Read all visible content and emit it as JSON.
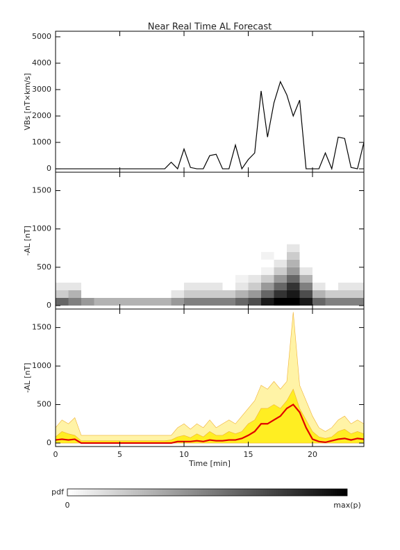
{
  "chart_data": [
    {
      "type": "line",
      "title": "Near Real Time AL Forecast",
      "ylabel": "VBs [nT×km/s]",
      "color": "#000000",
      "x": [
        0,
        0.5,
        1,
        1.5,
        2,
        2.5,
        3,
        3.5,
        4,
        4.5,
        5,
        5.5,
        6,
        6.5,
        7,
        7.5,
        8,
        8.5,
        9,
        9.5,
        10,
        10.5,
        11,
        11.5,
        12,
        12.5,
        13,
        13.5,
        14,
        14.5,
        15,
        15.5,
        16,
        16.5,
        17,
        17.5,
        18,
        18.5,
        19,
        19.5,
        20,
        20.5,
        21,
        21.5,
        22,
        22.5,
        23,
        23.5,
        24
      ],
      "values": [
        0,
        0,
        0,
        0,
        0,
        0,
        0,
        0,
        0,
        0,
        0,
        0,
        0,
        0,
        0,
        0,
        0,
        0,
        250,
        0,
        750,
        50,
        0,
        0,
        500,
        550,
        0,
        0,
        900,
        0,
        350,
        600,
        2950,
        1200,
        2500,
        3300,
        2800,
        2000,
        2600,
        0,
        0,
        0,
        600,
        0,
        1200,
        1150,
        50,
        0,
        1000
      ],
      "xlim": [
        0,
        24
      ],
      "xticks": [
        0,
        5,
        10,
        15,
        20
      ],
      "ylim": [
        -130,
        5210
      ],
      "yticks": [
        0,
        1000,
        2000,
        3000,
        4000,
        5000
      ]
    },
    {
      "type": "heatmap",
      "ylabel": "-AL [nT]",
      "xbins": [
        0,
        1,
        2,
        3,
        4,
        5,
        6,
        7,
        8,
        9,
        10,
        11,
        12,
        13,
        14,
        15,
        16,
        17,
        18,
        19,
        20,
        21,
        22,
        23,
        24
      ],
      "ybins": [
        0,
        100,
        200,
        300,
        400,
        500,
        600,
        700,
        800
      ],
      "z": [
        [
          0.6,
          0.5,
          0.4,
          0.3,
          0.3,
          0.3,
          0.3,
          0.3,
          0.3,
          0.4,
          0.5,
          0.5,
          0.5,
          0.5,
          0.6,
          0.7,
          0.9,
          1,
          1,
          0.9,
          0.6,
          0.5,
          0.5,
          0.5
        ],
        [
          0.2,
          0.3,
          0,
          0,
          0,
          0,
          0,
          0,
          0,
          0.1,
          0.2,
          0.2,
          0.2,
          0.2,
          0.3,
          0.4,
          0.6,
          0.8,
          0.9,
          0.7,
          0.3,
          0.2,
          0.2,
          0.2
        ],
        [
          0.1,
          0.1,
          0,
          0,
          0,
          0,
          0,
          0,
          0,
          0,
          0.1,
          0.1,
          0.1,
          0,
          0.1,
          0.2,
          0.4,
          0.6,
          0.8,
          0.5,
          0.1,
          0,
          0.1,
          0.1
        ],
        [
          0,
          0,
          0,
          0,
          0,
          0,
          0,
          0,
          0,
          0,
          0,
          0,
          0,
          0,
          0.05,
          0.1,
          0.2,
          0.4,
          0.6,
          0.3,
          0,
          0,
          0,
          0
        ],
        [
          0,
          0,
          0,
          0,
          0,
          0,
          0,
          0,
          0,
          0,
          0,
          0,
          0,
          0,
          0,
          0,
          0.05,
          0.2,
          0.4,
          0.1,
          0,
          0,
          0,
          0
        ],
        [
          0,
          0,
          0,
          0,
          0,
          0,
          0,
          0,
          0,
          0,
          0,
          0,
          0,
          0,
          0,
          0,
          0,
          0.1,
          0.3,
          0,
          0,
          0,
          0,
          0
        ],
        [
          0,
          0,
          0,
          0,
          0,
          0,
          0,
          0,
          0,
          0,
          0,
          0,
          0,
          0,
          0,
          0,
          0.05,
          0,
          0.2,
          0,
          0,
          0,
          0,
          0
        ],
        [
          0,
          0,
          0,
          0,
          0,
          0,
          0,
          0,
          0,
          0,
          0,
          0,
          0,
          0,
          0,
          0,
          0,
          0,
          0.1,
          0,
          0,
          0,
          0,
          0
        ]
      ],
      "xlim": [
        0,
        24
      ],
      "xticks": [
        0,
        5,
        10,
        15,
        20
      ],
      "ylim": [
        -45,
        1740
      ],
      "yticks": [
        0,
        500,
        1000,
        1500
      ],
      "colorbar": {
        "label": "pdf",
        "min_label": "0",
        "max_label": "max(p)"
      }
    },
    {
      "type": "area",
      "ylabel": "-AL [nT]",
      "xlabel": "Time [min]",
      "x": [
        0,
        0.5,
        1,
        1.5,
        2,
        2.5,
        3,
        3.5,
        4,
        4.5,
        5,
        5.5,
        6,
        6.5,
        7,
        7.5,
        8,
        8.5,
        9,
        9.5,
        10,
        10.5,
        11,
        11.5,
        12,
        12.5,
        13,
        13.5,
        14,
        14.5,
        15,
        15.5,
        16,
        16.5,
        17,
        17.5,
        18,
        18.5,
        19,
        19.5,
        20,
        20.5,
        21,
        21.5,
        22,
        22.5,
        23,
        23.5,
        24
      ],
      "series": [
        {
          "color": "#fff3a6",
          "values": [
            200,
            300,
            250,
            330,
            100,
            100,
            100,
            100,
            100,
            100,
            100,
            100,
            100,
            100,
            100,
            100,
            100,
            100,
            100,
            200,
            250,
            180,
            250,
            200,
            300,
            200,
            250,
            300,
            250,
            350,
            450,
            550,
            750,
            700,
            800,
            700,
            800,
            1700,
            750,
            550,
            350,
            200,
            150,
            200,
            300,
            350,
            250,
            300,
            250
          ]
        },
        {
          "color": "#ffee22",
          "values": [
            80,
            150,
            120,
            100,
            30,
            30,
            30,
            30,
            30,
            30,
            30,
            30,
            30,
            30,
            30,
            30,
            30,
            30,
            40,
            80,
            100,
            70,
            120,
            80,
            150,
            100,
            100,
            150,
            120,
            150,
            250,
            300,
            450,
            450,
            500,
            450,
            550,
            700,
            450,
            300,
            150,
            80,
            60,
            80,
            150,
            180,
            120,
            150,
            120
          ]
        },
        {
          "color": "#e00000",
          "values": [
            40,
            50,
            40,
            50,
            0,
            0,
            0,
            0,
            0,
            0,
            0,
            0,
            0,
            0,
            0,
            0,
            0,
            0,
            0,
            20,
            20,
            20,
            30,
            20,
            40,
            30,
            30,
            40,
            40,
            60,
            100,
            150,
            250,
            250,
            300,
            350,
            450,
            500,
            400,
            200,
            50,
            20,
            10,
            30,
            50,
            60,
            40,
            60,
            50
          ]
        }
      ],
      "xlim": [
        0,
        24
      ],
      "xticks": [
        0,
        5,
        10,
        15,
        20
      ],
      "ylim": [
        -45,
        1740
      ],
      "yticks": [
        0,
        500,
        1000,
        1500
      ]
    }
  ]
}
